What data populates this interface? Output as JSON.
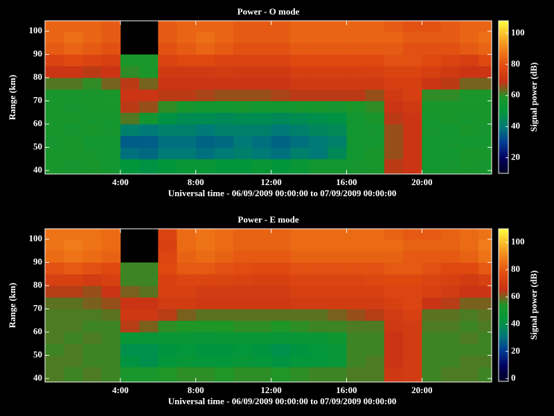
{
  "chart_data": [
    {
      "type": "heatmap",
      "title": "Power - O mode",
      "x_label": "Universal time - 06/09/2009 00:00:00 to 07/09/2009 00:00:00",
      "y_label": "Range (km)",
      "colorbar_label": "Signal power (dB)",
      "xlim": [
        0,
        23.7
      ],
      "ylim": [
        38.5,
        104.5
      ],
      "zlim": [
        10,
        108
      ],
      "xticks": [
        {
          "value": 4,
          "label": "4:00"
        },
        {
          "value": 8,
          "label": "8:00"
        },
        {
          "value": 12,
          "label": "12:00"
        },
        {
          "value": 16,
          "label": "16:00"
        },
        {
          "value": 20,
          "label": "20:00"
        }
      ],
      "yticks": [
        40,
        50,
        60,
        70,
        80,
        90,
        100
      ],
      "zticks": [
        20,
        40,
        60,
        80,
        100
      ],
      "xbins": [
        0,
        1,
        2,
        3,
        4,
        5,
        6,
        7,
        8,
        9,
        10,
        11,
        12,
        13,
        14,
        15,
        16,
        17,
        18,
        19,
        20,
        21,
        22,
        23,
        23.7
      ],
      "ybins": [
        38.5,
        45,
        50,
        55,
        60,
        65,
        70,
        75,
        80,
        85,
        90,
        95,
        100,
        104.5
      ],
      "colormap": [
        "#000020",
        "#000060",
        "#003c96",
        "#00787a",
        "#00963c",
        "#1e9628",
        "#c83214",
        "#e04a10",
        "#f07a18",
        "#f8b828",
        "#ffff40"
      ],
      "z": [
        [
          57,
          56,
          57,
          55,
          50,
          48,
          50,
          52,
          52,
          50,
          50,
          52,
          50,
          52,
          55,
          55,
          56,
          57,
          68,
          70,
          55,
          56,
          57,
          56
        ],
        [
          57,
          57,
          56,
          55,
          38,
          37,
          40,
          40,
          38,
          40,
          42,
          40,
          38,
          42,
          40,
          45,
          55,
          57,
          66,
          70,
          55,
          55,
          57,
          57
        ],
        [
          56,
          57,
          55,
          55,
          35,
          35,
          38,
          38,
          36,
          37,
          40,
          38,
          36,
          38,
          40,
          42,
          55,
          56,
          66,
          70,
          55,
          56,
          55,
          56
        ],
        [
          57,
          56,
          57,
          56,
          42,
          40,
          42,
          42,
          40,
          42,
          42,
          42,
          40,
          42,
          44,
          45,
          55,
          56,
          66,
          70,
          56,
          55,
          57,
          56
        ],
        [
          57,
          57,
          56,
          56,
          62,
          55,
          48,
          46,
          46,
          45,
          46,
          46,
          45,
          46,
          47,
          48,
          55,
          57,
          68,
          70,
          56,
          57,
          56,
          57
        ],
        [
          57,
          56,
          57,
          57,
          68,
          66,
          60,
          56,
          55,
          55,
          56,
          55,
          55,
          56,
          56,
          56,
          58,
          60,
          70,
          72,
          57,
          57,
          57,
          57
        ],
        [
          57,
          57,
          57,
          58,
          70,
          70,
          68,
          68,
          67,
          66,
          66,
          66,
          67,
          68,
          68,
          68,
          68,
          66,
          72,
          74,
          60,
          60,
          58,
          58
        ],
        [
          62,
          62,
          60,
          64,
          68,
          64,
          70,
          70,
          70,
          70,
          70,
          70,
          70,
          72,
          72,
          72,
          72,
          72,
          74,
          74,
          70,
          68,
          64,
          64
        ],
        [
          70,
          70,
          68,
          70,
          60,
          58,
          72,
          72,
          72,
          73,
          72,
          72,
          72,
          74,
          74,
          74,
          74,
          75,
          76,
          76,
          74,
          72,
          70,
          70
        ],
        [
          76,
          78,
          76,
          75,
          58,
          58,
          76,
          78,
          78,
          76,
          76,
          76,
          76,
          78,
          78,
          78,
          78,
          78,
          80,
          80,
          78,
          76,
          74,
          78
        ],
        [
          82,
          84,
          82,
          80,
          null,
          null,
          80,
          82,
          84,
          82,
          80,
          80,
          80,
          82,
          82,
          82,
          82,
          82,
          82,
          80,
          80,
          80,
          82,
          84
        ],
        [
          84,
          86,
          84,
          82,
          null,
          null,
          82,
          84,
          86,
          84,
          82,
          82,
          82,
          84,
          84,
          84,
          84,
          84,
          84,
          82,
          82,
          82,
          84,
          86
        ],
        [
          84,
          84,
          84,
          82,
          null,
          null,
          82,
          84,
          84,
          84,
          82,
          82,
          82,
          84,
          84,
          84,
          84,
          84,
          82,
          80,
          80,
          82,
          84,
          84
        ]
      ]
    },
    {
      "type": "heatmap",
      "title": "Power - E mode",
      "x_label": "Universal time - 06/09/2009 00:00:00 to 07/09/2009 00:00:00",
      "y_label": "Range (km)",
      "colorbar_label": "Signal power (dB)",
      "xlim": [
        0,
        23.7
      ],
      "ylim": [
        38.5,
        104.5
      ],
      "zlim": [
        -2,
        110
      ],
      "xticks": [
        {
          "value": 4,
          "label": "4:00"
        },
        {
          "value": 8,
          "label": "8:00"
        },
        {
          "value": 12,
          "label": "12:00"
        },
        {
          "value": 16,
          "label": "16:00"
        },
        {
          "value": 20,
          "label": "20:00"
        }
      ],
      "yticks": [
        40,
        50,
        60,
        70,
        80,
        90,
        100
      ],
      "zticks": [
        0,
        20,
        40,
        60,
        80,
        100
      ],
      "xbins": [
        0,
        1,
        2,
        3,
        4,
        5,
        6,
        7,
        8,
        9,
        10,
        11,
        12,
        13,
        14,
        15,
        16,
        17,
        18,
        19,
        20,
        21,
        22,
        23,
        23.7
      ],
      "ybins": [
        38.5,
        45,
        50,
        55,
        60,
        65,
        70,
        75,
        80,
        85,
        90,
        95,
        100,
        104.5
      ],
      "colormap": [
        "#000020",
        "#000060",
        "#003c96",
        "#00787a",
        "#00963c",
        "#1e9628",
        "#c83214",
        "#e04a10",
        "#f07a18",
        "#f8b828",
        "#ffff40"
      ],
      "z": [
        [
          57,
          56,
          57,
          56,
          52,
          52,
          54,
          55,
          55,
          54,
          55,
          55,
          54,
          55,
          56,
          56,
          57,
          57,
          68,
          70,
          56,
          57,
          57,
          56
        ],
        [
          57,
          57,
          56,
          56,
          42,
          40,
          44,
          45,
          44,
          44,
          45,
          44,
          42,
          44,
          44,
          46,
          56,
          57,
          66,
          70,
          56,
          56,
          57,
          57
        ],
        [
          56,
          57,
          56,
          56,
          40,
          40,
          42,
          44,
          42,
          42,
          44,
          42,
          40,
          42,
          44,
          45,
          56,
          56,
          66,
          70,
          56,
          56,
          56,
          56
        ],
        [
          57,
          56,
          57,
          56,
          46,
          45,
          46,
          46,
          45,
          46,
          46,
          46,
          45,
          46,
          46,
          48,
          56,
          56,
          66,
          70,
          56,
          56,
          57,
          56
        ],
        [
          57,
          57,
          56,
          56,
          64,
          60,
          55,
          54,
          54,
          54,
          55,
          55,
          54,
          55,
          56,
          56,
          57,
          57,
          68,
          70,
          57,
          57,
          56,
          57
        ],
        [
          57,
          57,
          57,
          58,
          68,
          68,
          64,
          60,
          58,
          58,
          58,
          58,
          58,
          58,
          58,
          60,
          62,
          64,
          70,
          72,
          58,
          58,
          57,
          58
        ],
        [
          58,
          58,
          60,
          62,
          66,
          66,
          70,
          70,
          68,
          68,
          68,
          68,
          68,
          70,
          70,
          70,
          70,
          70,
          72,
          74,
          66,
          64,
          60,
          60
        ],
        [
          64,
          64,
          62,
          66,
          60,
          58,
          72,
          72,
          70,
          70,
          70,
          70,
          70,
          72,
          72,
          72,
          72,
          72,
          74,
          74,
          72,
          70,
          66,
          66
        ],
        [
          72,
          72,
          70,
          72,
          56,
          56,
          72,
          74,
          74,
          74,
          73,
          72,
          72,
          74,
          74,
          74,
          74,
          75,
          76,
          76,
          74,
          72,
          70,
          72
        ],
        [
          78,
          80,
          78,
          76,
          56,
          56,
          76,
          80,
          80,
          78,
          77,
          76,
          76,
          78,
          78,
          78,
          78,
          78,
          80,
          80,
          78,
          76,
          76,
          80
        ],
        [
          84,
          86,
          84,
          82,
          null,
          null,
          74,
          82,
          84,
          82,
          80,
          80,
          80,
          82,
          82,
          82,
          82,
          82,
          82,
          80,
          80,
          80,
          82,
          86
        ],
        [
          86,
          88,
          86,
          84,
          null,
          null,
          72,
          84,
          86,
          84,
          82,
          82,
          82,
          84,
          84,
          84,
          84,
          84,
          84,
          82,
          82,
          82,
          84,
          88
        ],
        [
          86,
          86,
          86,
          84,
          null,
          null,
          74,
          84,
          86,
          84,
          82,
          82,
          82,
          84,
          84,
          84,
          84,
          84,
          82,
          80,
          80,
          82,
          84,
          86
        ]
      ]
    }
  ]
}
